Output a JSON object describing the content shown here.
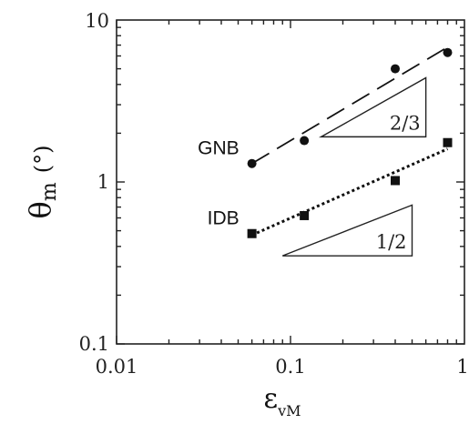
{
  "chart_data": {
    "type": "scatter",
    "x_scale": "log",
    "y_scale": "log",
    "xlim": [
      0.01,
      1
    ],
    "ylim": [
      0.1,
      10
    ],
    "x_tick_labels": [
      "0.01",
      "0.1",
      "1"
    ],
    "y_tick_labels": [
      "0.1",
      "1",
      "10"
    ],
    "xlabel": {
      "main": "ε",
      "sub": "vM"
    },
    "ylabel": {
      "main": "θ",
      "sub": "m",
      "unit": "(°)"
    },
    "grid": false,
    "series": [
      {
        "name": "GNB",
        "marker": "circle",
        "points": [
          [
            0.06,
            1.3
          ],
          [
            0.12,
            1.8
          ],
          [
            0.4,
            5.0
          ],
          [
            0.8,
            6.3
          ]
        ],
        "fit": {
          "style": "dashed",
          "x": [
            0.06,
            0.8
          ],
          "y": [
            1.3,
            6.8
          ]
        }
      },
      {
        "name": "IDB",
        "marker": "square",
        "points": [
          [
            0.06,
            0.48
          ],
          [
            0.12,
            0.62
          ],
          [
            0.4,
            1.02
          ],
          [
            0.8,
            1.75
          ]
        ],
        "fit": {
          "style": "dotted",
          "x": [
            0.06,
            0.8
          ],
          "y": [
            0.47,
            1.6
          ]
        }
      }
    ],
    "slope_triangles": [
      {
        "label": "2/3",
        "x": [
          0.15,
          0.6
        ],
        "y": [
          1.9,
          4.4
        ]
      },
      {
        "label": "1/2",
        "x": [
          0.09,
          0.5
        ],
        "y": [
          0.35,
          0.72
        ]
      }
    ]
  }
}
